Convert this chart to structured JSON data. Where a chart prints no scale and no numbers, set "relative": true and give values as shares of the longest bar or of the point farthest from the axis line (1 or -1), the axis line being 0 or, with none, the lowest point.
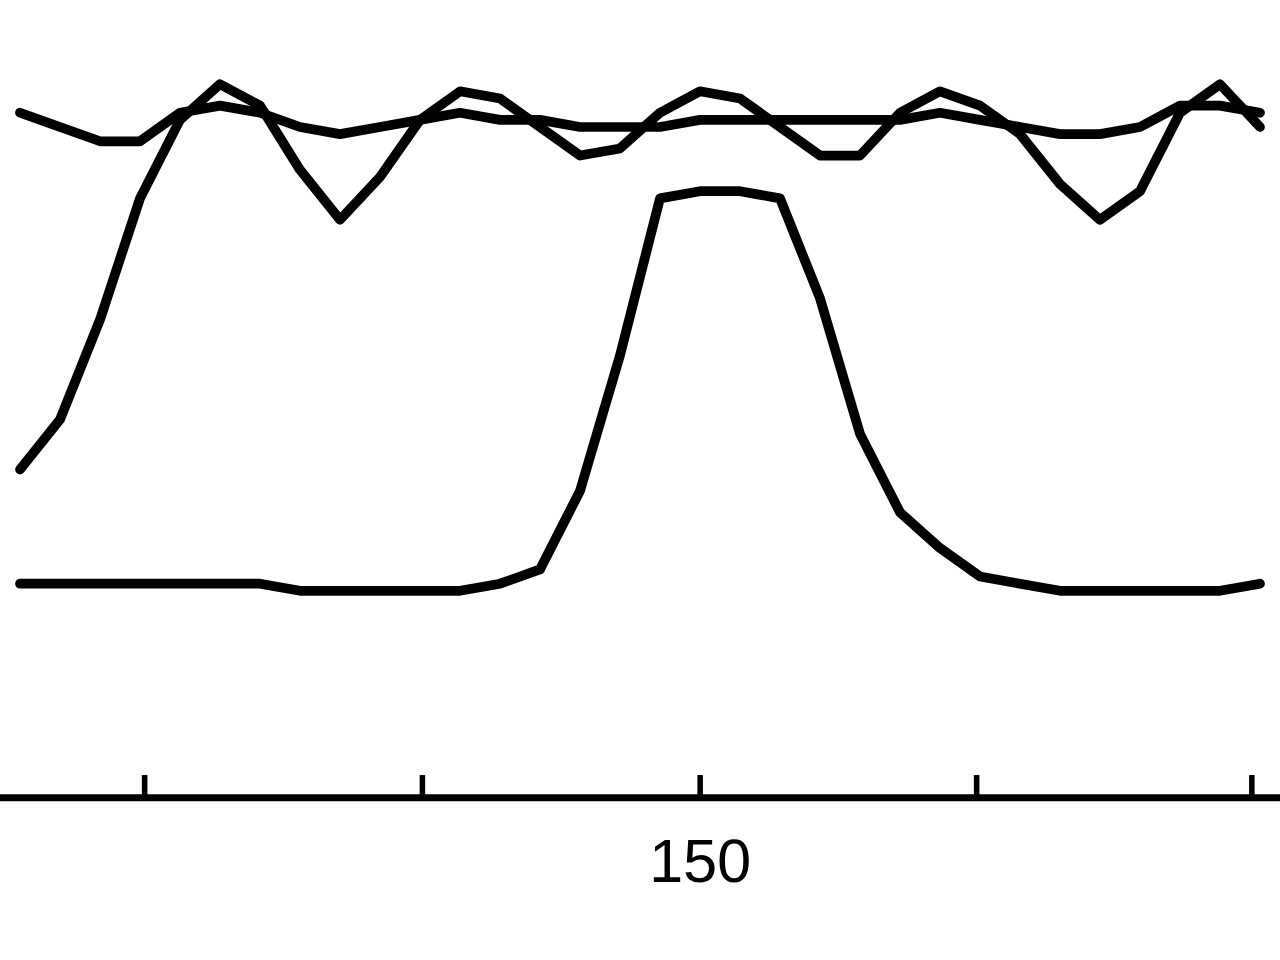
{
  "chart_data": {
    "type": "line",
    "relative": true,
    "categories": [
      null,
      null,
      null,
      null,
      null,
      null,
      null,
      null,
      null,
      null,
      null,
      null,
      null,
      null,
      null,
      null,
      null,
      null,
      null,
      null,
      null,
      null,
      null,
      null,
      null,
      null,
      null,
      null,
      null,
      null,
      null,
      null
    ],
    "annotations": [
      "150"
    ],
    "grid": false,
    "legend": false,
    "marker": "none",
    "line_style": "solid",
    "series": [
      {
        "color": "#000000",
        "values": [
          0.46,
          0.53,
          0.67,
          0.84,
          0.95,
          1.0,
          0.97,
          0.88,
          0.81,
          0.87,
          0.95,
          0.99,
          0.98,
          0.94,
          0.9,
          0.91,
          0.96,
          0.99,
          0.98,
          0.94,
          0.9,
          0.9,
          0.96,
          0.99,
          0.97,
          0.93,
          0.86,
          0.81,
          0.85,
          0.96,
          1.0,
          0.94
        ]
      },
      {
        "color": "#000000",
        "values": [
          0.96,
          0.94,
          0.92,
          0.92,
          0.96,
          0.97,
          0.96,
          0.94,
          0.93,
          0.94,
          0.95,
          0.96,
          0.95,
          0.95,
          0.94,
          0.94,
          0.94,
          0.95,
          0.95,
          0.95,
          0.95,
          0.95,
          0.95,
          0.96,
          0.95,
          0.94,
          0.93,
          0.93,
          0.94,
          0.97,
          0.97,
          0.96
        ]
      },
      {
        "color": "#000000",
        "values": [
          0.3,
          0.3,
          0.3,
          0.3,
          0.3,
          0.3,
          0.3,
          0.29,
          0.29,
          0.29,
          0.29,
          0.29,
          0.3,
          0.32,
          0.43,
          0.62,
          0.84,
          0.85,
          0.85,
          0.84,
          0.7,
          0.51,
          0.4,
          0.35,
          0.31,
          0.3,
          0.29,
          0.29,
          0.29,
          0.29,
          0.29,
          0.3
        ]
      }
    ]
  }
}
